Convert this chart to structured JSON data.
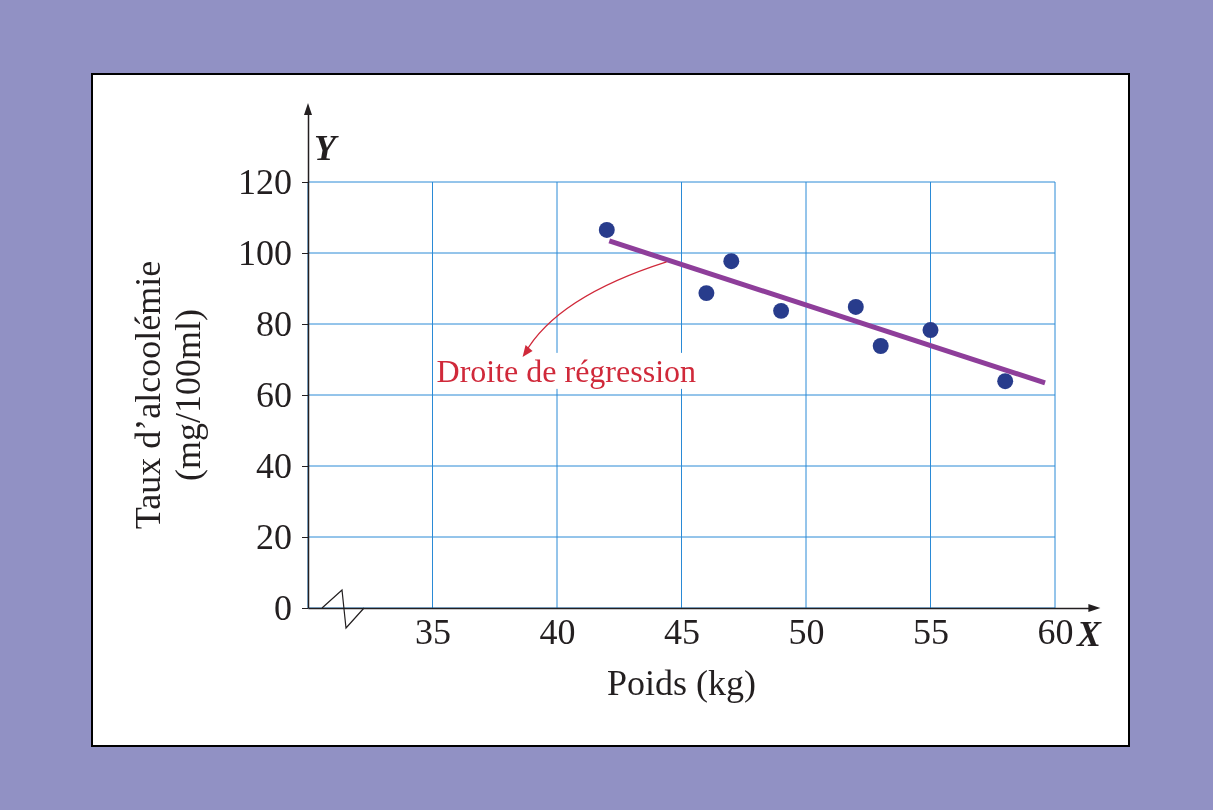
{
  "chart_data": {
    "type": "scatter",
    "xlabel": "Poids (kg)",
    "ylabel": "Taux d’alcoolémie\n(mg/100ml)",
    "xlim": [
      30,
      61.5
    ],
    "ylim": [
      0,
      140
    ],
    "xticks": [
      {
        "value": 30,
        "label": null
      },
      35,
      40,
      45,
      50,
      55,
      60
    ],
    "yticks": [
      0,
      20,
      40,
      60,
      80,
      100,
      120
    ],
    "grid": true,
    "marker": "circle",
    "series": [
      {
        "color": "#283c8c",
        "x": [
          42,
          46,
          47,
          49,
          52,
          53,
          55,
          58
        ],
        "values": [
          106.5,
          88.7,
          97.7,
          83.7,
          84.8,
          73.8,
          78.3,
          63.9
        ]
      },
      {
        "type": "line",
        "color": "#8e3e9a",
        "line_style": "solid",
        "marker": "none",
        "x": [
          42.1,
          59.6
        ],
        "values": [
          103.4,
          63.4
        ]
      }
    ],
    "annotations": [
      {
        "text": "Droite de régression",
        "x": 44.4,
        "y": 97.5
      },
      "Y",
      "X"
    ]
  }
}
